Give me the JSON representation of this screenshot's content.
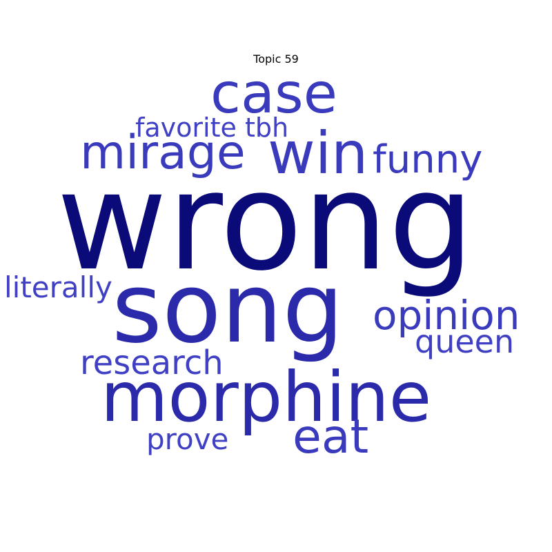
{
  "title": "Topic 59",
  "colors": {
    "darkest": "#0a0a78",
    "dark": "#2a2aab",
    "medium": "#3a3abd",
    "light": "#4040c4"
  },
  "words": {
    "wrong": "wrong",
    "song": "song",
    "morphine": "morphine",
    "case": "case",
    "win": "win",
    "mirage": "mirage",
    "eat": "eat",
    "opinion": "opinion",
    "funny": "funny",
    "queen": "queen",
    "research": "research",
    "favorite_tbh": "favorite tbh",
    "literally": "literally",
    "prove": "prove"
  }
}
